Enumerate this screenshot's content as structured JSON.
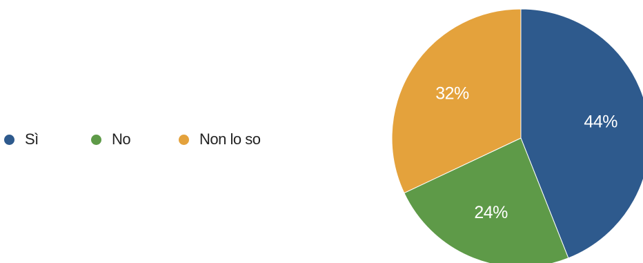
{
  "chart_data": {
    "type": "pie",
    "categories": [
      "Sì",
      "No",
      "Non lo so"
    ],
    "values": [
      44,
      24,
      32
    ],
    "value_labels": [
      "44%",
      "24%",
      "32%"
    ],
    "colors": [
      "#2e5a8d",
      "#5e9a48",
      "#e4a23c"
    ],
    "legend_position": "left",
    "title": ""
  }
}
